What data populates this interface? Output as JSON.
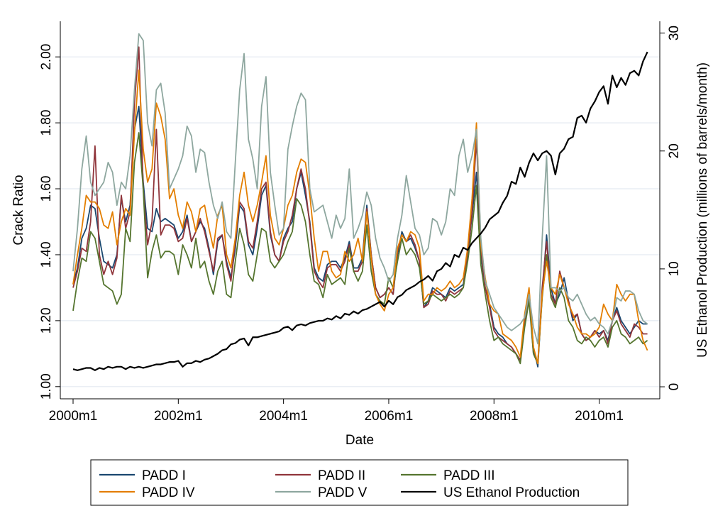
{
  "chart_data": {
    "type": "line",
    "x_label": "Date",
    "y_label": "Crack Ratio",
    "y2_label": "US Ethanol Production (millions of barrels/month)",
    "x": [
      "2000m1",
      "2000m2",
      "2000m3",
      "2000m4",
      "2000m5",
      "2000m6",
      "2000m7",
      "2000m8",
      "2000m9",
      "2000m10",
      "2000m11",
      "2000m12",
      "2001m1",
      "2001m2",
      "2001m3",
      "2001m4",
      "2001m5",
      "2001m6",
      "2001m7",
      "2001m8",
      "2001m9",
      "2001m10",
      "2001m11",
      "2001m12",
      "2002m1",
      "2002m2",
      "2002m3",
      "2002m4",
      "2002m5",
      "2002m6",
      "2002m7",
      "2002m8",
      "2002m9",
      "2002m10",
      "2002m11",
      "2002m12",
      "2003m1",
      "2003m2",
      "2003m3",
      "2003m4",
      "2003m5",
      "2003m6",
      "2003m7",
      "2003m8",
      "2003m9",
      "2003m10",
      "2003m11",
      "2003m12",
      "2004m1",
      "2004m2",
      "2004m3",
      "2004m4",
      "2004m5",
      "2004m6",
      "2004m7",
      "2004m8",
      "2004m9",
      "2004m10",
      "2004m11",
      "2004m12",
      "2005m1",
      "2005m2",
      "2005m3",
      "2005m4",
      "2005m5",
      "2005m6",
      "2005m7",
      "2005m8",
      "2005m9",
      "2005m10",
      "2005m11",
      "2005m12",
      "2006m1",
      "2006m2",
      "2006m3",
      "2006m4",
      "2006m5",
      "2006m6",
      "2006m7",
      "2006m8",
      "2006m9",
      "2006m10",
      "2006m11",
      "2006m12",
      "2007m1",
      "2007m2",
      "2007m3",
      "2007m4",
      "2007m5",
      "2007m6",
      "2007m7",
      "2007m8",
      "2007m9",
      "2007m10",
      "2007m11",
      "2007m12",
      "2008m1",
      "2008m2",
      "2008m3",
      "2008m4",
      "2008m5",
      "2008m6",
      "2008m7",
      "2008m8",
      "2008m9",
      "2008m10",
      "2008m11",
      "2008m12",
      "2009m1",
      "2009m2",
      "2009m3",
      "2009m4",
      "2009m5",
      "2009m6",
      "2009m7",
      "2009m8",
      "2009m9",
      "2009m10",
      "2009m11",
      "2009m12",
      "2010m1",
      "2010m2",
      "2010m3",
      "2010m4",
      "2010m5",
      "2010m6",
      "2010m7",
      "2010m8",
      "2010m9",
      "2010m10",
      "2010m11",
      "2010m12"
    ],
    "series": [
      {
        "name": "PADD I",
        "color": "#1a476f",
        "values": [
          1.31,
          1.36,
          1.45,
          1.48,
          1.55,
          1.54,
          1.45,
          1.38,
          1.37,
          1.36,
          1.4,
          1.57,
          1.5,
          1.55,
          1.78,
          1.85,
          1.62,
          1.48,
          1.47,
          1.54,
          1.5,
          1.51,
          1.5,
          1.49,
          1.45,
          1.47,
          1.52,
          1.44,
          1.47,
          1.5,
          1.48,
          1.42,
          1.34,
          1.44,
          1.46,
          1.38,
          1.33,
          1.42,
          1.55,
          1.53,
          1.43,
          1.4,
          1.48,
          1.58,
          1.61,
          1.46,
          1.4,
          1.38,
          1.45,
          1.48,
          1.5,
          1.6,
          1.65,
          1.58,
          1.5,
          1.36,
          1.33,
          1.32,
          1.37,
          1.38,
          1.38,
          1.36,
          1.39,
          1.44,
          1.36,
          1.36,
          1.39,
          1.55,
          1.4,
          1.3,
          1.27,
          1.28,
          1.3,
          1.28,
          1.4,
          1.47,
          1.44,
          1.45,
          1.42,
          1.38,
          1.24,
          1.26,
          1.3,
          1.29,
          1.28,
          1.27,
          1.3,
          1.29,
          1.3,
          1.31,
          1.4,
          1.52,
          1.65,
          1.4,
          1.3,
          1.25,
          1.18,
          1.16,
          1.15,
          1.13,
          1.12,
          1.1,
          1.08,
          1.2,
          1.29,
          1.12,
          1.06,
          1.28,
          1.46,
          1.3,
          1.25,
          1.28,
          1.33,
          1.26,
          1.2,
          1.22,
          1.16,
          1.14,
          1.15,
          1.17,
          1.16,
          1.17,
          1.14,
          1.2,
          1.24,
          1.2,
          1.18,
          1.16,
          1.18,
          1.2,
          1.19,
          1.19
        ]
      },
      {
        "name": "PADD II",
        "color": "#90353b",
        "values": [
          1.3,
          1.35,
          1.42,
          1.41,
          1.5,
          1.73,
          1.4,
          1.34,
          1.38,
          1.34,
          1.39,
          1.58,
          1.48,
          1.53,
          1.86,
          2.03,
          1.6,
          1.43,
          1.5,
          1.78,
          1.46,
          1.49,
          1.49,
          1.48,
          1.44,
          1.45,
          1.51,
          1.44,
          1.47,
          1.51,
          1.47,
          1.41,
          1.35,
          1.45,
          1.46,
          1.37,
          1.32,
          1.44,
          1.56,
          1.54,
          1.44,
          1.42,
          1.5,
          1.6,
          1.62,
          1.47,
          1.4,
          1.38,
          1.44,
          1.47,
          1.52,
          1.6,
          1.66,
          1.6,
          1.49,
          1.35,
          1.32,
          1.3,
          1.36,
          1.37,
          1.37,
          1.35,
          1.38,
          1.43,
          1.35,
          1.35,
          1.38,
          1.54,
          1.4,
          1.3,
          1.27,
          1.28,
          1.3,
          1.28,
          1.41,
          1.46,
          1.44,
          1.46,
          1.43,
          1.38,
          1.24,
          1.25,
          1.29,
          1.28,
          1.28,
          1.26,
          1.29,
          1.28,
          1.29,
          1.3,
          1.4,
          1.53,
          1.75,
          1.42,
          1.3,
          1.24,
          1.17,
          1.15,
          1.14,
          1.13,
          1.12,
          1.1,
          1.08,
          1.19,
          1.28,
          1.1,
          1.07,
          1.3,
          1.44,
          1.28,
          1.25,
          1.35,
          1.3,
          1.26,
          1.21,
          1.22,
          1.16,
          1.14,
          1.15,
          1.17,
          1.15,
          1.17,
          1.13,
          1.2,
          1.23,
          1.19,
          1.17,
          1.15,
          1.19,
          1.18,
          1.16,
          1.16
        ]
      },
      {
        "name": "PADD III",
        "color": "#55752f",
        "values": [
          1.23,
          1.32,
          1.39,
          1.38,
          1.47,
          1.45,
          1.38,
          1.31,
          1.3,
          1.29,
          1.25,
          1.28,
          1.48,
          1.44,
          1.68,
          1.77,
          1.6,
          1.33,
          1.41,
          1.46,
          1.39,
          1.41,
          1.41,
          1.4,
          1.34,
          1.43,
          1.4,
          1.36,
          1.45,
          1.36,
          1.38,
          1.32,
          1.28,
          1.35,
          1.38,
          1.28,
          1.27,
          1.38,
          1.48,
          1.43,
          1.34,
          1.32,
          1.4,
          1.48,
          1.47,
          1.38,
          1.36,
          1.38,
          1.4,
          1.44,
          1.47,
          1.57,
          1.55,
          1.5,
          1.4,
          1.32,
          1.31,
          1.27,
          1.34,
          1.31,
          1.32,
          1.33,
          1.31,
          1.42,
          1.35,
          1.32,
          1.35,
          1.49,
          1.35,
          1.28,
          1.26,
          1.25,
          1.33,
          1.3,
          1.38,
          1.45,
          1.4,
          1.42,
          1.4,
          1.36,
          1.25,
          1.26,
          1.28,
          1.27,
          1.26,
          1.27,
          1.28,
          1.27,
          1.28,
          1.3,
          1.38,
          1.48,
          1.61,
          1.37,
          1.28,
          1.2,
          1.14,
          1.15,
          1.13,
          1.12,
          1.11,
          1.1,
          1.07,
          1.18,
          1.26,
          1.1,
          1.07,
          1.27,
          1.4,
          1.27,
          1.24,
          1.3,
          1.27,
          1.2,
          1.18,
          1.14,
          1.13,
          1.15,
          1.14,
          1.12,
          1.14,
          1.15,
          1.12,
          1.18,
          1.2,
          1.16,
          1.15,
          1.13,
          1.14,
          1.15,
          1.13,
          1.14
        ]
      },
      {
        "name": "PADD IV",
        "color": "#e37e00",
        "values": [
          1.31,
          1.4,
          1.48,
          1.58,
          1.56,
          1.56,
          1.54,
          1.49,
          1.48,
          1.53,
          1.43,
          1.5,
          1.54,
          1.52,
          1.77,
          1.96,
          1.72,
          1.62,
          1.66,
          1.86,
          1.82,
          1.75,
          1.57,
          1.6,
          1.52,
          1.48,
          1.56,
          1.53,
          1.47,
          1.54,
          1.55,
          1.48,
          1.42,
          1.52,
          1.55,
          1.4,
          1.36,
          1.45,
          1.58,
          1.65,
          1.55,
          1.5,
          1.55,
          1.62,
          1.7,
          1.52,
          1.45,
          1.43,
          1.48,
          1.55,
          1.58,
          1.65,
          1.69,
          1.68,
          1.58,
          1.45,
          1.35,
          1.41,
          1.41,
          1.35,
          1.33,
          1.34,
          1.41,
          1.38,
          1.4,
          1.45,
          1.38,
          1.53,
          1.39,
          1.28,
          1.25,
          1.23,
          1.28,
          1.3,
          1.42,
          1.46,
          1.44,
          1.47,
          1.46,
          1.42,
          1.26,
          1.28,
          1.28,
          1.3,
          1.29,
          1.3,
          1.32,
          1.3,
          1.31,
          1.33,
          1.42,
          1.57,
          1.8,
          1.43,
          1.33,
          1.25,
          1.23,
          1.22,
          1.16,
          1.15,
          1.14,
          1.12,
          1.09,
          1.22,
          1.3,
          1.12,
          1.07,
          1.28,
          1.38,
          1.3,
          1.28,
          1.34,
          1.3,
          1.25,
          1.22,
          1.18,
          1.16,
          1.16,
          1.15,
          1.16,
          1.18,
          1.25,
          1.22,
          1.2,
          1.31,
          1.28,
          1.26,
          1.28,
          1.28,
          1.2,
          1.14,
          1.11
        ]
      },
      {
        "name": "PADD V",
        "color": "#8ea79f",
        "values": [
          1.35,
          1.48,
          1.66,
          1.76,
          1.62,
          1.58,
          1.6,
          1.62,
          1.68,
          1.65,
          1.55,
          1.62,
          1.6,
          1.7,
          1.9,
          2.07,
          2.05,
          1.8,
          1.73,
          1.9,
          1.92,
          1.83,
          1.6,
          1.63,
          1.66,
          1.7,
          1.79,
          1.76,
          1.65,
          1.72,
          1.71,
          1.62,
          1.55,
          1.51,
          1.56,
          1.47,
          1.45,
          1.68,
          1.9,
          2.01,
          1.75,
          1.69,
          1.6,
          1.85,
          1.94,
          1.65,
          1.55,
          1.46,
          1.48,
          1.72,
          1.79,
          1.85,
          1.89,
          1.87,
          1.6,
          1.53,
          1.54,
          1.55,
          1.5,
          1.45,
          1.52,
          1.48,
          1.51,
          1.66,
          1.45,
          1.48,
          1.52,
          1.59,
          1.55,
          1.45,
          1.39,
          1.36,
          1.32,
          1.34,
          1.45,
          1.52,
          1.64,
          1.56,
          1.48,
          1.46,
          1.4,
          1.42,
          1.51,
          1.5,
          1.46,
          1.5,
          1.6,
          1.58,
          1.7,
          1.75,
          1.65,
          1.7,
          1.78,
          1.45,
          1.32,
          1.28,
          1.24,
          1.22,
          1.2,
          1.18,
          1.17,
          1.18,
          1.19,
          1.21,
          1.28,
          1.18,
          1.13,
          1.45,
          1.7,
          1.3,
          1.3,
          1.29,
          1.3,
          1.27,
          1.26,
          1.28,
          1.25,
          1.22,
          1.2,
          1.21,
          1.19,
          1.18,
          1.16,
          1.2,
          1.27,
          1.26,
          1.29,
          1.29,
          1.28,
          1.23,
          1.2,
          1.19
        ]
      },
      {
        "name": "US Ethanol Production",
        "color": "#000000",
        "axis": "y2",
        "values": [
          1.5,
          1.4,
          1.5,
          1.6,
          1.6,
          1.4,
          1.6,
          1.5,
          1.7,
          1.6,
          1.7,
          1.7,
          1.5,
          1.7,
          1.6,
          1.7,
          1.6,
          1.7,
          1.8,
          1.9,
          1.9,
          2.0,
          2.1,
          2.1,
          2.2,
          1.7,
          2.0,
          2.0,
          2.2,
          2.1,
          2.3,
          2.4,
          2.6,
          2.8,
          3.1,
          3.2,
          3.6,
          3.7,
          4.0,
          4.1,
          3.5,
          4.2,
          4.2,
          4.3,
          4.4,
          4.5,
          4.6,
          4.7,
          5.0,
          5.1,
          4.8,
          5.2,
          5.3,
          5.2,
          5.4,
          5.5,
          5.6,
          5.6,
          5.8,
          5.7,
          6.0,
          5.8,
          6.2,
          6.1,
          6.4,
          6.2,
          6.5,
          6.6,
          6.8,
          7.0,
          7.2,
          6.8,
          7.3,
          7.0,
          7.6,
          7.8,
          8.2,
          8.4,
          8.6,
          8.9,
          9.1,
          9.4,
          9.0,
          9.8,
          10.0,
          10.5,
          10.2,
          11.2,
          11.0,
          11.8,
          11.6,
          12.2,
          12.6,
          13.0,
          13.5,
          14.2,
          14.5,
          14.8,
          15.6,
          16.2,
          17.4,
          17.2,
          18.6,
          17.8,
          19.0,
          19.8,
          19.2,
          19.8,
          20.0,
          19.6,
          18.0,
          19.8,
          20.2,
          21.0,
          21.2,
          22.8,
          23.0,
          22.4,
          23.6,
          24.2,
          25.0,
          25.5,
          24.0,
          26.4,
          25.4,
          26.2,
          25.6,
          26.6,
          26.8,
          26.4,
          27.6,
          28.4
        ]
      }
    ],
    "ylim": [
      0.963,
      2.108
    ],
    "yticks": [
      {
        "value": 1,
        "label": "1.00"
      },
      {
        "value": 1.2,
        "label": "1.20"
      },
      {
        "value": 1.4,
        "label": "1.40"
      },
      {
        "value": 1.6,
        "label": "1.60"
      },
      {
        "value": 1.8,
        "label": "1.80"
      },
      {
        "value": 2,
        "label": "2.00"
      }
    ],
    "y2lim": [
      -1.02,
      31
    ],
    "y2ticks": [
      0,
      10,
      20,
      30
    ],
    "grid": true
  }
}
